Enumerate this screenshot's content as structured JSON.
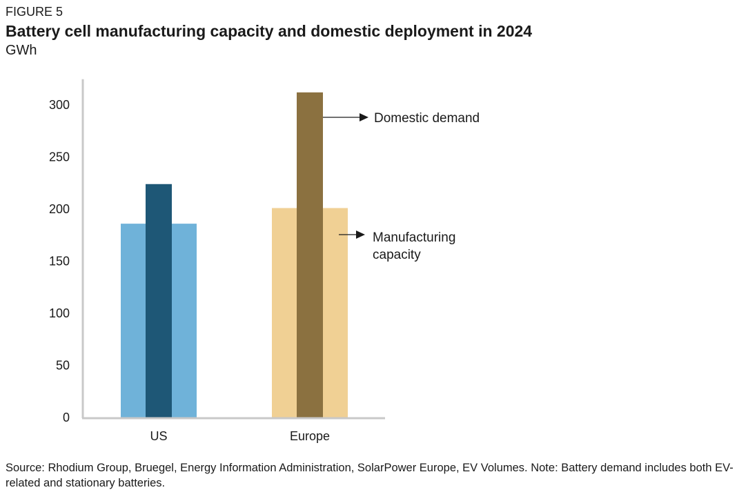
{
  "header": {
    "figure_label": "FIGURE 5",
    "title": "Battery cell manufacturing capacity and domestic deployment in 2024",
    "unit": "GWh"
  },
  "chart_data": {
    "type": "bar",
    "categories": [
      "US",
      "Europe"
    ],
    "series": [
      {
        "name": "Manufacturing capacity",
        "values": [
          186,
          201
        ],
        "colors": [
          "#6fb2d9",
          "#f0d094"
        ]
      },
      {
        "name": "Domestic demand",
        "values": [
          224,
          312
        ],
        "colors": [
          "#1e5776",
          "#8b7140"
        ]
      }
    ],
    "ylim": [
      0,
      320
    ],
    "yticks": [
      0,
      50,
      100,
      150,
      200,
      250,
      300
    ],
    "grid": false,
    "annotations": [
      {
        "text_lines": [
          "Domestic demand"
        ],
        "points_to": "Europe domestic demand"
      },
      {
        "text_lines": [
          "Manufacturing",
          "capacity"
        ],
        "points_to": "Europe manufacturing capacity"
      }
    ]
  },
  "footer": {
    "source": "Source: Rhodium Group, Bruegel, Energy Information Administration, SolarPower Europe, EV Volumes. Note: Battery demand includes both EV-related and stationary batteries."
  }
}
